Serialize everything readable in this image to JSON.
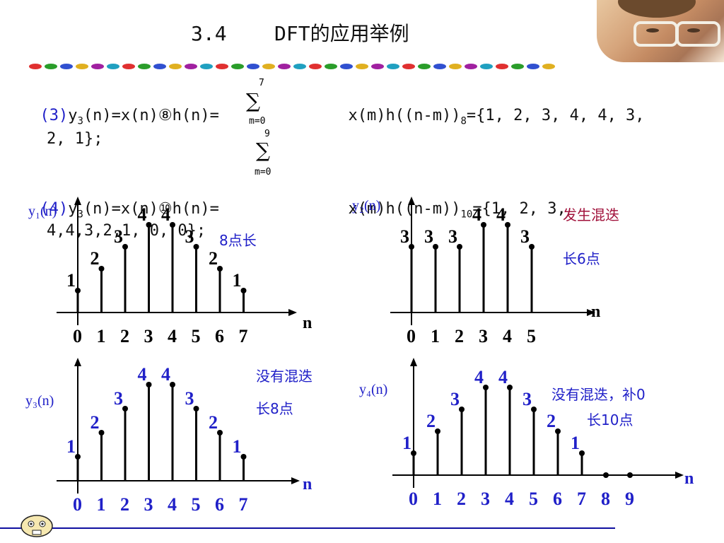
{
  "title": "3.4    DFT的应用举例",
  "line3": {
    "prefix": "(3)",
    "expr_a": "y",
    "sub_a": "3",
    "expr_b": "(n)=x(n)⑧h(n)=",
    "sum_top": "7",
    "sum_bottom": "m=0",
    "expr_c": "x(m)h((n-m))",
    "sub_c": "8",
    "expr_d": "={1, 2, 3, 4, 4, 3,",
    "cont": "2, 1};"
  },
  "line4": {
    "prefix": "(4)",
    "expr_a": "y",
    "sub_a": "3",
    "expr_b": "(n)=x(n)⑩h(n)=",
    "sum_top": "9",
    "sum_bottom": "m=0",
    "expr_c": "x(m)h((n-m))",
    "sub_c": "10",
    "expr_d": "={1, 2, 3,",
    "cont": "4,4,3,2,1, 0, 0};"
  },
  "plots": {
    "y1": {
      "label": "y₁(n)",
      "note": "8点长",
      "axis": "n",
      "x": [
        "0",
        "1",
        "2",
        "3",
        "4",
        "5",
        "6",
        "7"
      ],
      "values": [
        1,
        2,
        3,
        4,
        4,
        3,
        2,
        1
      ],
      "value_labels": [
        "1",
        "2",
        "3",
        "4",
        "4",
        "3",
        "2",
        "1"
      ]
    },
    "y2": {
      "label": "y₂(n)",
      "note1": "发生混迭",
      "note2": "长6点",
      "axis": "n",
      "x": [
        "0",
        "1",
        "2",
        "3",
        "4",
        "5"
      ],
      "values": [
        3,
        3,
        3,
        4,
        4,
        3
      ],
      "value_labels": [
        "3",
        "3",
        "3",
        "4",
        "4",
        "3"
      ]
    },
    "y3": {
      "label": "y₃(n)",
      "note1": "没有混迭",
      "note2": "长8点",
      "axis": "n",
      "x": [
        "0",
        "1",
        "2",
        "3",
        "4",
        "5",
        "6",
        "7"
      ],
      "values": [
        1,
        2,
        3,
        4,
        4,
        3,
        2,
        1
      ],
      "value_labels": [
        "1",
        "2",
        "3",
        "4",
        "4",
        "3",
        "2",
        "1"
      ]
    },
    "y4": {
      "label": "y₄(n)",
      "note1": "没有混迭，补0",
      "note2": "长10点",
      "axis": "n",
      "x": [
        "0",
        "1",
        "2",
        "3",
        "4",
        "5",
        "6",
        "7",
        "8",
        "9"
      ],
      "values": [
        1,
        2,
        3,
        4,
        4,
        3,
        2,
        1,
        0,
        0
      ],
      "value_labels": [
        "1",
        "2",
        "3",
        "4",
        "4",
        "3",
        "2",
        "1",
        "",
        ""
      ]
    }
  },
  "colors": {
    "text": "#111111",
    "blue": "#2020c8",
    "red": "#a0103a",
    "axis": "#000000"
  }
}
